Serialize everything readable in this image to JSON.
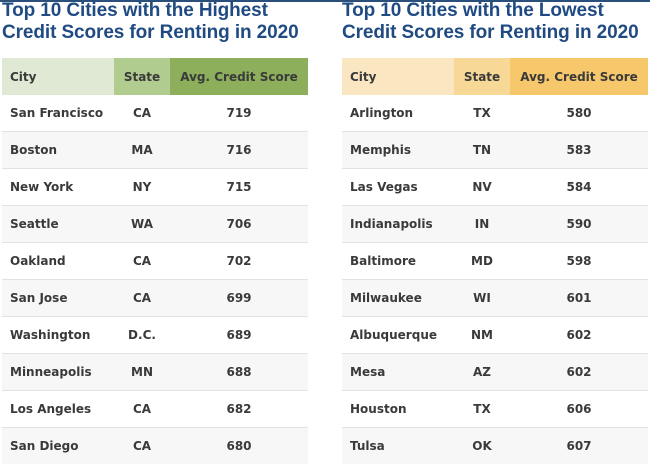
{
  "left_table": {
    "title_line1": "Top 10 Cities with the Highest",
    "title_line2": "Credit Scores for Renting in 2020",
    "headers": {
      "city": "City",
      "state": "State",
      "score": "Avg. Credit Score"
    },
    "colors": {
      "city_header": "#dfe9d3",
      "state_header": "#b0cc8e",
      "score_header": "#8daf5c"
    },
    "rows": [
      {
        "city": "San Francisco",
        "state": "CA",
        "score": "719"
      },
      {
        "city": "Boston",
        "state": "MA",
        "score": "716"
      },
      {
        "city": "New York",
        "state": "NY",
        "score": "715"
      },
      {
        "city": "Seattle",
        "state": "WA",
        "score": "706"
      },
      {
        "city": "Oakland",
        "state": "CA",
        "score": "702"
      },
      {
        "city": "San Jose",
        "state": "CA",
        "score": "699"
      },
      {
        "city": "Washington",
        "state": "D.C.",
        "score": "689"
      },
      {
        "city": "Minneapolis",
        "state": "MN",
        "score": "688"
      },
      {
        "city": "Los Angeles",
        "state": "CA",
        "score": "682"
      },
      {
        "city": "San Diego",
        "state": "CA",
        "score": "680"
      }
    ]
  },
  "right_table": {
    "title_line1": "Top 10 Cities with the Lowest",
    "title_line2": "Credit Scores for Renting in 2020",
    "headers": {
      "city": "City",
      "state": "State",
      "score": "Avg. Credit Score"
    },
    "colors": {
      "city_header": "#fbe6c2",
      "state_header": "#f8d896",
      "score_header": "#f6c86b"
    },
    "rows": [
      {
        "city": "Arlington",
        "state": "TX",
        "score": "580"
      },
      {
        "city": "Memphis",
        "state": "TN",
        "score": "583"
      },
      {
        "city": "Las Vegas",
        "state": "NV",
        "score": "584"
      },
      {
        "city": "Indianapolis",
        "state": "IN",
        "score": "590"
      },
      {
        "city": "Baltimore",
        "state": "MD",
        "score": "598"
      },
      {
        "city": "Milwaukee",
        "state": "WI",
        "score": "601"
      },
      {
        "city": "Albuquerque",
        "state": "NM",
        "score": "602"
      },
      {
        "city": "Mesa",
        "state": "AZ",
        "score": "602"
      },
      {
        "city": "Houston",
        "state": "TX",
        "score": "606"
      },
      {
        "city": "Tulsa",
        "state": "OK",
        "score": "607"
      }
    ]
  },
  "title_color": "#1f4b82"
}
